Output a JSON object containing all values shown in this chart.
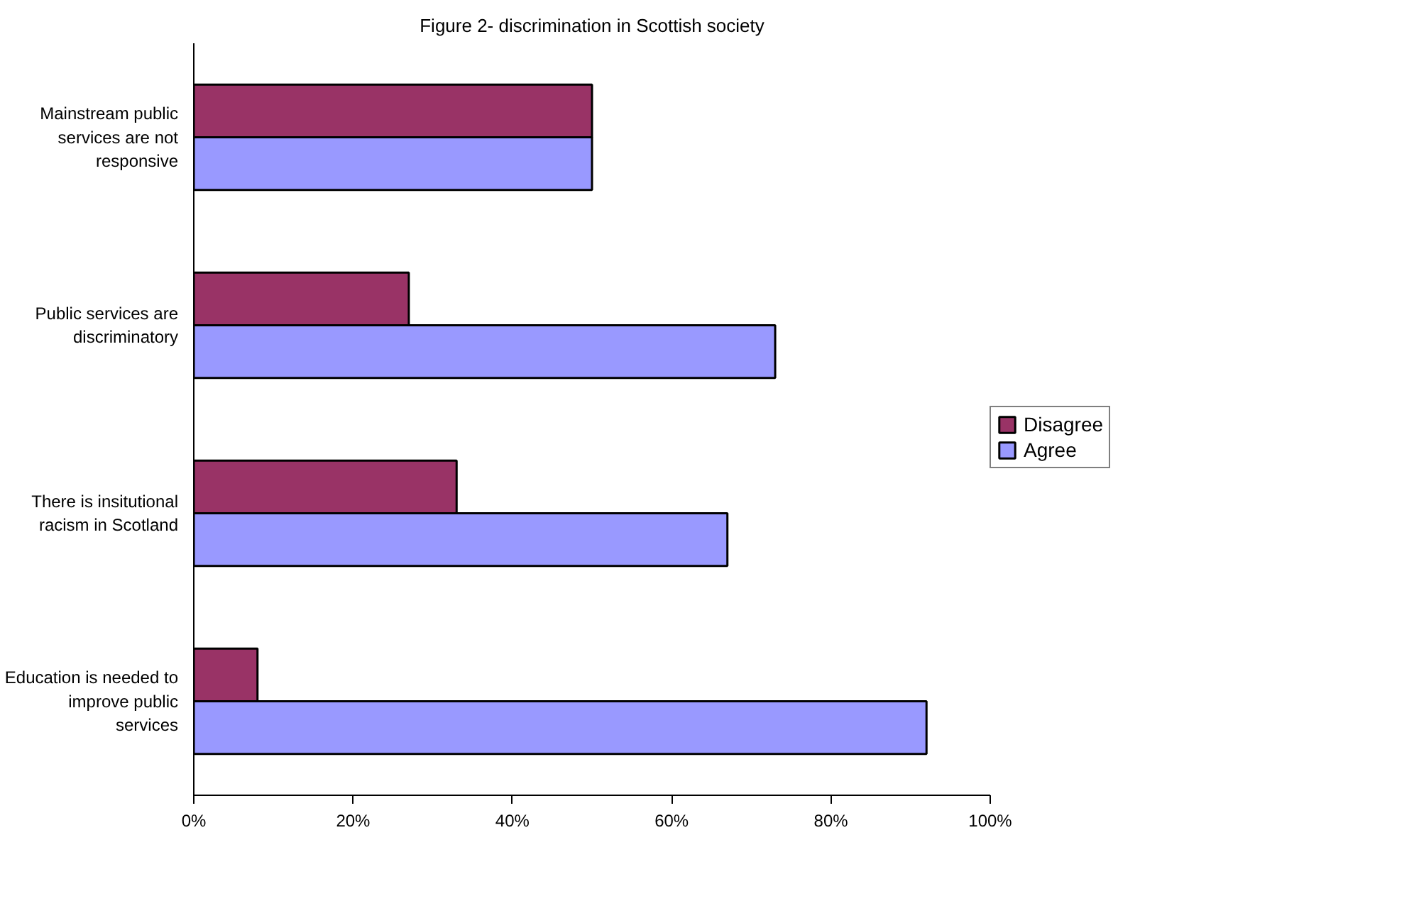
{
  "chart_data": {
    "type": "bar",
    "orientation": "horizontal",
    "title": "Figure 2- discrimination in Scottish society",
    "categories": [
      "Mainstream public services are not responsive",
      "Public services are discriminatory",
      "There is insitutional racism in Scotland",
      "Education is needed to improve public services"
    ],
    "series": [
      {
        "name": "Disagree",
        "color": "#993366",
        "values": [
          50,
          27,
          33,
          8
        ]
      },
      {
        "name": "Agree",
        "color": "#9999ff",
        "values": [
          50,
          73,
          67,
          92
        ]
      }
    ],
    "xlim": [
      0,
      100
    ],
    "xticks": [
      {
        "value": 0,
        "label": "0%"
      },
      {
        "value": 20,
        "label": "20%"
      },
      {
        "value": 40,
        "label": "40%"
      },
      {
        "value": 60,
        "label": "60%"
      },
      {
        "value": 80,
        "label": "80%"
      },
      {
        "value": 100,
        "label": "100%"
      }
    ],
    "grid": false,
    "legend": "right"
  }
}
